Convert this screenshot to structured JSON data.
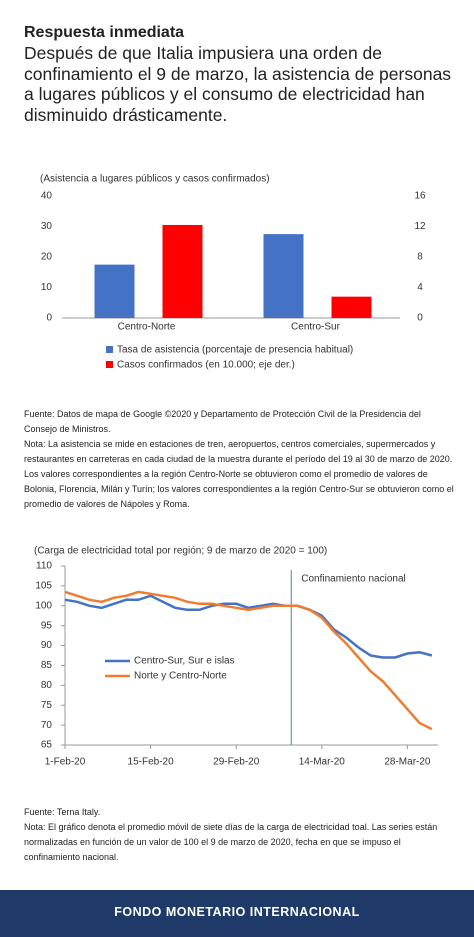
{
  "header": {
    "title": "Respuesta inmediata",
    "text": "Después de que Italia impusiera una orden de confinamiento el 9 de marzo, la asistencia de personas a lugares públicos y el consumo de electricidad han disminuido drásticamente."
  },
  "chart_data": [
    {
      "type": "bar",
      "subtitle": "(Asistencia a lugares públicos y casos confirmados)",
      "categories": [
        "Centro-Norte",
        "Centro-Sur"
      ],
      "series": [
        {
          "name": "Tasa de asistencia (porcentaje de presencia habitual)",
          "color": "#4472c4",
          "values": [
            17.5,
            27.5
          ]
        },
        {
          "name": "Casos confirmados (en 10.000; eje der.)",
          "color": "#ff0000",
          "values": [
            12.2,
            2.8
          ],
          "axis": "y2"
        }
      ],
      "ylim": [
        0,
        40
      ],
      "yticks": [
        0,
        10,
        20,
        30,
        40
      ],
      "y2lim": [
        0,
        16
      ],
      "y2ticks": [
        0,
        4,
        8,
        12,
        16
      ]
    },
    {
      "type": "line",
      "subtitle": "(Carga de electricidad total por región; 9 de marzo de 2020 = 100)",
      "x": [
        "2020-02-01",
        "2020-02-03",
        "2020-02-05",
        "2020-02-07",
        "2020-02-09",
        "2020-02-11",
        "2020-02-13",
        "2020-02-15",
        "2020-02-17",
        "2020-02-19",
        "2020-02-21",
        "2020-02-23",
        "2020-02-25",
        "2020-02-27",
        "2020-02-29",
        "2020-03-02",
        "2020-03-04",
        "2020-03-06",
        "2020-03-08",
        "2020-03-10",
        "2020-03-12",
        "2020-03-14",
        "2020-03-16",
        "2020-03-18",
        "2020-03-20",
        "2020-03-22",
        "2020-03-24",
        "2020-03-26",
        "2020-03-28",
        "2020-03-30",
        "2020-04-01"
      ],
      "xlim": [
        "2020-02-01",
        "2020-04-02"
      ],
      "xticks": [
        {
          "value": "2020-02-01",
          "label": "1-Feb-20"
        },
        {
          "value": "2020-02-15",
          "label": "15-Feb-20"
        },
        {
          "value": "2020-02-29",
          "label": "29-Feb-20"
        },
        {
          "value": "2020-03-14",
          "label": "14-Mar-20"
        },
        {
          "value": "2020-03-28",
          "label": "28-Mar-20"
        }
      ],
      "ylim": [
        65,
        110
      ],
      "yticks": [
        65,
        70,
        75,
        80,
        85,
        90,
        95,
        100,
        105,
        110
      ],
      "series": [
        {
          "name": "Centro-Sur, Sur e islas",
          "color": "#4472c4",
          "values": [
            101.5,
            101,
            100,
            99.5,
            100.5,
            101.5,
            101.5,
            102.5,
            101,
            99.5,
            99,
            99,
            100,
            100.5,
            100.5,
            99.5,
            100,
            100.5,
            100,
            100,
            99,
            97.5,
            94,
            92,
            89.5,
            87.5,
            87,
            87,
            88,
            88.3,
            87.5
          ]
        },
        {
          "name": "Norte y Centro-Norte",
          "color": "#ed7d31",
          "values": [
            103.5,
            102.5,
            101.5,
            101,
            102,
            102.5,
            103.5,
            103,
            102.5,
            102,
            101,
            100.5,
            100.5,
            100,
            99.5,
            99,
            99.5,
            100,
            100,
            100,
            99,
            97,
            93.5,
            90.5,
            87,
            83.5,
            81,
            77.5,
            74,
            70.5,
            69
          ]
        }
      ],
      "annotations": [
        {
          "text": "Confinamiento nacional",
          "x": "2020-03-09"
        }
      ]
    }
  ],
  "notes": [
    {
      "source": "Fuente: Datos de mapa de Google ©2020 y Departamento de Protección Civil de la Presidencia del Consejo de Ministros.",
      "note": "Nota: La asistencia se mide en estaciones de tren, aeropuertos, centros comerciales, supermercados y restaurantes en carreteras en cada ciudad de la muestra durante el período del 19 al 30 de marzo de 2020. Los valores correspondientes a la región Centro-Norte se obtuvieron como el promedio de valores de Bolonia, Florencia, Milán y Turín; los valores correspondientes a la región Centro-Sur se obtuvieron como el promedio de valores de Nápoles y Roma."
    },
    {
      "source": "Fuente: Terna Italy.",
      "note": "Nota: El gráfico denota el promedio móvil de siete días de la carga de electricidad toal. Las series están normalizadas en función de un valor de 100 el 9 de marzo de 2020, fecha en que se impuso el confinamiento nacional."
    }
  ],
  "footer": "FONDO MONETARIO INTERNACIONAL"
}
